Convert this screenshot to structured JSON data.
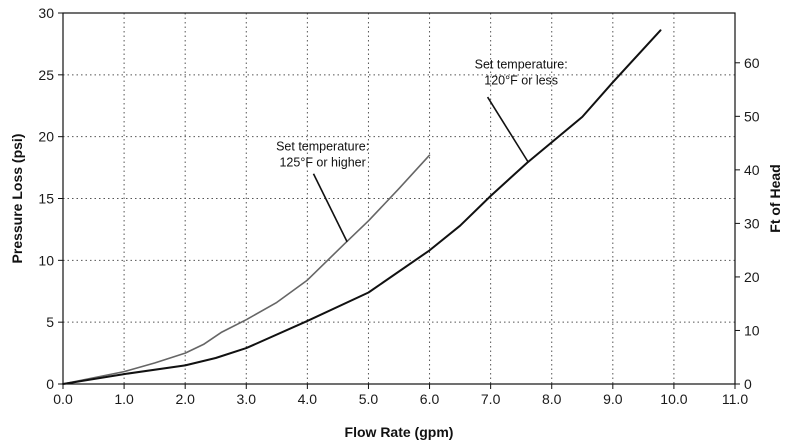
{
  "chart_data": {
    "type": "line",
    "xlabel": "Flow Rate (gpm)",
    "ylabel": "Pressure Loss (psi)",
    "y2label": "Ft of Head",
    "xlim": [
      0,
      11
    ],
    "ylim": [
      0,
      30
    ],
    "y2lim": [
      0,
      69.3
    ],
    "x_ticks": [
      "0.0",
      "1.0",
      "2.0",
      "3.0",
      "4.0",
      "5.0",
      "6.0",
      "7.0",
      "8.0",
      "9.0",
      "10.0",
      "11.0"
    ],
    "y_ticks": [
      "0",
      "5",
      "10",
      "15",
      "20",
      "25",
      "30"
    ],
    "y2_ticks": [
      "0",
      "10",
      "20",
      "30",
      "40",
      "50",
      "60"
    ],
    "grid": true,
    "series": [
      {
        "key": "high",
        "color": "#666666",
        "x": [
          0,
          1.0,
          1.5,
          2.0,
          2.3,
          2.6,
          3.0,
          3.5,
          4.0,
          4.6,
          5.0,
          5.5,
          6.0
        ],
        "y": [
          0,
          1.0,
          1.7,
          2.5,
          3.2,
          4.2,
          5.2,
          6.6,
          8.4,
          11.3,
          13.2,
          15.8,
          18.5
        ]
      },
      {
        "key": "low",
        "color": "#111111",
        "x": [
          0,
          1.0,
          2.0,
          2.5,
          3.0,
          4.0,
          5.0,
          6.0,
          6.5,
          7.0,
          7.6,
          8.5,
          9.0,
          9.78
        ],
        "y": [
          0,
          0.8,
          1.5,
          2.1,
          2.9,
          5.1,
          7.4,
          10.8,
          12.8,
          15.2,
          17.9,
          21.6,
          24.4,
          28.6
        ]
      }
    ],
    "annotations": [
      {
        "series": "high",
        "line1": "Set temperature:",
        "line2": "125°F or higher",
        "text_x": 4.25,
        "text_y": 18.9,
        "leader_from": [
          4.1,
          17.0
        ],
        "leader_to": [
          4.65,
          11.5
        ]
      },
      {
        "series": "low",
        "line1": "Set temperature:",
        "line2": "120°F or less",
        "text_x": 7.5,
        "text_y": 25.5,
        "leader_from": [
          6.95,
          23.2
        ],
        "leader_to": [
          7.62,
          17.9
        ]
      }
    ]
  }
}
